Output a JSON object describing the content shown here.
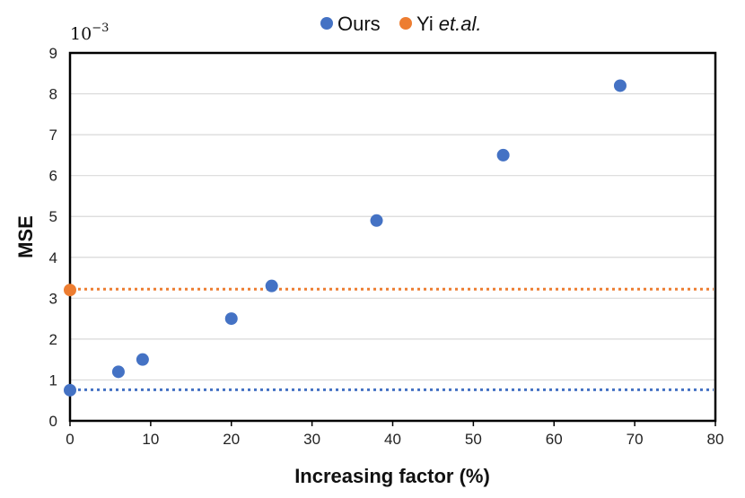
{
  "chart_data": {
    "type": "scatter",
    "xlabel": "Increasing factor (%)",
    "ylabel": "MSE",
    "y_scale_label": "10",
    "y_scale_exponent": "−3",
    "xlim": [
      0,
      80
    ],
    "ylim": [
      0,
      9
    ],
    "xticks": [
      0,
      10,
      20,
      30,
      40,
      50,
      60,
      70,
      80
    ],
    "yticks": [
      0,
      1,
      2,
      3,
      4,
      5,
      6,
      7,
      8,
      9
    ],
    "grid": "horizontal",
    "legend_position": "top-center",
    "series": [
      {
        "name": "Ours",
        "name_emphasis": "",
        "color": "#4472C4",
        "points": [
          {
            "x": 0,
            "y": 0.75
          },
          {
            "x": 6,
            "y": 1.2
          },
          {
            "x": 9,
            "y": 1.5
          },
          {
            "x": 20,
            "y": 2.5
          },
          {
            "x": 25,
            "y": 3.3
          },
          {
            "x": 38,
            "y": 4.9
          },
          {
            "x": 53.7,
            "y": 6.5
          },
          {
            "x": 68.2,
            "y": 8.2
          }
        ],
        "reference_line": 0.76
      },
      {
        "name": "Yi",
        "name_emphasis": "et.al.",
        "color": "#ED7D31",
        "points": [
          {
            "x": 0,
            "y": 3.2
          }
        ],
        "reference_line": 3.22
      }
    ]
  }
}
